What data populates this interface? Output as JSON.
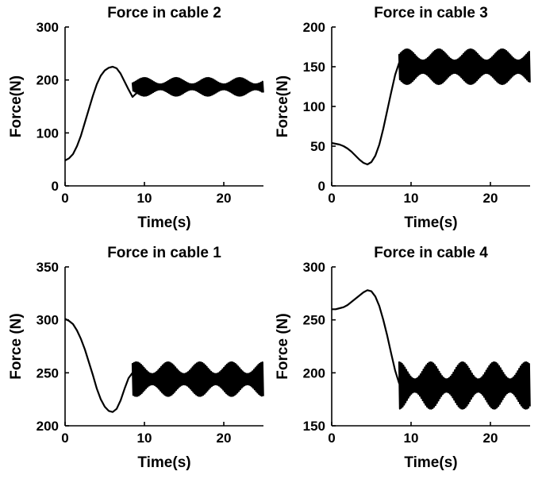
{
  "chart_data": [
    {
      "type": "line",
      "title": "Force in cable 2",
      "xlabel": "Time(s)",
      "ylabel": "Force(N)",
      "xlim": [
        0,
        25
      ],
      "ylim": [
        0,
        300
      ],
      "xticks": [
        0,
        10,
        20
      ],
      "yticks": [
        0,
        100,
        200,
        300
      ],
      "grid": false,
      "series": [
        {
          "x": [
            0,
            0.5,
            1,
            1.5,
            2,
            2.5,
            3,
            3.5,
            4,
            4.5,
            5,
            5.5,
            6,
            6.5,
            7,
            7.5,
            8,
            8.5,
            9
          ],
          "y": [
            48,
            52,
            60,
            75,
            95,
            120,
            145,
            170,
            192,
            208,
            218,
            223,
            225,
            222,
            212,
            197,
            182,
            168,
            175
          ]
        }
      ],
      "oscillation": {
        "from": 8.5,
        "to": 25,
        "center": 187,
        "amp_min": 5,
        "amp_max": 17
      }
    },
    {
      "type": "line",
      "title": "Force in cable 3",
      "xlabel": "Time(s)",
      "ylabel": "Force(N)",
      "xlim": [
        0,
        25
      ],
      "ylim": [
        0,
        200
      ],
      "xticks": [
        0,
        10,
        20
      ],
      "yticks": [
        0,
        50,
        100,
        150,
        200
      ],
      "grid": false,
      "series": [
        {
          "x": [
            0,
            0.5,
            1,
            1.5,
            2,
            2.5,
            3,
            3.5,
            4,
            4.5,
            5,
            5.5,
            6,
            6.5,
            7,
            7.5,
            8,
            8.5,
            9
          ],
          "y": [
            54,
            53,
            52,
            50,
            47,
            43,
            38,
            33,
            29,
            27,
            30,
            38,
            52,
            72,
            95,
            118,
            140,
            155,
            163
          ]
        }
      ],
      "oscillation": {
        "from": 8.5,
        "to": 25,
        "center": 150,
        "amp_min": 8,
        "amp_max": 22
      }
    },
    {
      "type": "line",
      "title": "Force in cable 1",
      "xlabel": "Time(s)",
      "ylabel": "Force (N)",
      "xlim": [
        0,
        25
      ],
      "ylim": [
        200,
        350
      ],
      "xticks": [
        0,
        10,
        20
      ],
      "yticks": [
        200,
        250,
        300,
        350
      ],
      "grid": false,
      "series": [
        {
          "x": [
            0,
            0.5,
            1,
            1.5,
            2,
            2.5,
            3,
            3.5,
            4,
            4.5,
            5,
            5.5,
            6,
            6.5,
            7,
            7.5,
            8,
            8.5,
            9
          ],
          "y": [
            301,
            299,
            296,
            290,
            282,
            272,
            260,
            248,
            235,
            225,
            218,
            214,
            213,
            216,
            224,
            235,
            245,
            250,
            250
          ]
        }
      ],
      "oscillation": {
        "from": 8.5,
        "to": 25,
        "center": 244,
        "amp_min": 5,
        "amp_max": 16
      }
    },
    {
      "type": "line",
      "title": "Force in cable 4",
      "xlabel": "Time(s)",
      "ylabel": "Force (N)",
      "xlim": [
        0,
        25
      ],
      "ylim": [
        150,
        300
      ],
      "xticks": [
        0,
        10,
        20
      ],
      "yticks": [
        150,
        200,
        250,
        300
      ],
      "grid": false,
      "series": [
        {
          "x": [
            0,
            0.5,
            1,
            1.5,
            2,
            2.5,
            3,
            3.5,
            4,
            4.5,
            5,
            5.5,
            6,
            6.5,
            7,
            7.5,
            8,
            8.5,
            9
          ],
          "y": [
            260,
            260,
            261,
            262,
            264,
            267,
            270,
            273,
            276,
            278,
            277,
            272,
            263,
            250,
            235,
            218,
            202,
            190,
            185
          ]
        }
      ],
      "oscillation": {
        "from": 8.5,
        "to": 25,
        "center": 188,
        "amp_min": 6,
        "amp_max": 22
      }
    }
  ]
}
